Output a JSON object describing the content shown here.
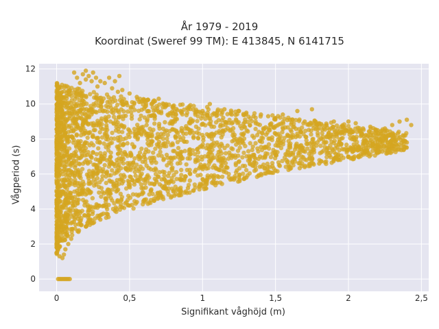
{
  "chart_data": {
    "type": "scatter",
    "title_lines": [
      "År 1979 - 2019",
      "Koordinat (Sweref 99 TM): E 413845, N 6141715"
    ],
    "xlabel": "Signifikant våghöjd (m)",
    "ylabel": "Vågperiod (s)",
    "xlim": [
      -0.12,
      2.55
    ],
    "ylim": [
      -0.7,
      12.3
    ],
    "x_ticks": [
      0,
      0.5,
      1,
      1.5,
      2,
      2.5
    ],
    "x_tick_labels": [
      "0",
      "0,5",
      "1",
      "1,5",
      "2",
      "2,5"
    ],
    "y_ticks": [
      0,
      2,
      4,
      6,
      8,
      10,
      12
    ],
    "y_tick_labels": [
      "0",
      "2",
      "4",
      "6",
      "8",
      "10",
      "12"
    ],
    "grid": true,
    "series": [
      {
        "color": "#d4a520",
        "points": [
          [
            0.01,
            0
          ],
          [
            0.02,
            0
          ],
          [
            0.03,
            0
          ],
          [
            0.04,
            0
          ],
          [
            0.05,
            0
          ],
          [
            0.06,
            0
          ],
          [
            0.07,
            0
          ],
          [
            0.08,
            0
          ],
          [
            0.09,
            0
          ],
          [
            0.12,
            11.8
          ],
          [
            0.14,
            11.5
          ],
          [
            0.16,
            11.2
          ],
          [
            0.18,
            11.7
          ],
          [
            0.2,
            11.4
          ],
          [
            0.2,
            11.9
          ],
          [
            0.22,
            11.6
          ],
          [
            0.24,
            11.3
          ],
          [
            0.25,
            11.8
          ],
          [
            0.27,
            11.5
          ],
          [
            0.28,
            11.0
          ],
          [
            0.3,
            11.3
          ],
          [
            0.33,
            11.2
          ],
          [
            0.36,
            11.5
          ],
          [
            0.38,
            10.9
          ],
          [
            0.4,
            11.3
          ],
          [
            0.42,
            10.7
          ],
          [
            0.43,
            11.6
          ],
          [
            0.45,
            10.8
          ],
          [
            0.5,
            10.6
          ],
          [
            0.55,
            10.4
          ],
          [
            0.6,
            10.2
          ],
          [
            0.65,
            10.0
          ],
          [
            0.7,
            10.3
          ],
          [
            0.75,
            9.9
          ],
          [
            0.8,
            9.8
          ],
          [
            0.85,
            9.6
          ],
          [
            0.9,
            9.7
          ],
          [
            0.95,
            9.5
          ],
          [
            1.0,
            9.6
          ],
          [
            1.05,
            10.0
          ],
          [
            1.1,
            9.5
          ],
          [
            1.15,
            9.7
          ],
          [
            1.2,
            9.4
          ],
          [
            1.25,
            9.6
          ],
          [
            1.3,
            9.5
          ],
          [
            1.35,
            9.3
          ],
          [
            1.4,
            9.4
          ],
          [
            1.45,
            9.3
          ],
          [
            1.5,
            9.2
          ],
          [
            1.55,
            9.4
          ],
          [
            1.6,
            9.1
          ],
          [
            1.65,
            9.6
          ],
          [
            1.7,
            9.0
          ],
          [
            1.75,
            9.7
          ],
          [
            1.8,
            8.9
          ],
          [
            1.85,
            8.8
          ],
          [
            1.9,
            9.0
          ],
          [
            1.95,
            8.7
          ],
          [
            2.0,
            9.0
          ],
          [
            2.05,
            8.9
          ],
          [
            2.1,
            8.6
          ],
          [
            2.15,
            8.7
          ],
          [
            2.2,
            8.5
          ],
          [
            2.25,
            8.6
          ],
          [
            2.3,
            8.8
          ],
          [
            2.35,
            9.0
          ],
          [
            2.4,
            9.1
          ],
          [
            2.43,
            8.8
          ],
          [
            0.0,
            1.5
          ],
          [
            0.01,
            1.9
          ],
          [
            0.02,
            1.3
          ],
          [
            0.03,
            2.2
          ],
          [
            0.04,
            1.2
          ],
          [
            0.05,
            1.4
          ],
          [
            0.06,
            1.7
          ],
          [
            0.08,
            2.0
          ],
          [
            0.1,
            2.3
          ],
          [
            0.15,
            2.7
          ],
          [
            0.2,
            3.0
          ],
          [
            0.25,
            3.2
          ],
          [
            0.3,
            3.4
          ],
          [
            0.35,
            3.7
          ],
          [
            0.4,
            3.9
          ],
          [
            0.45,
            4.1
          ],
          [
            0.5,
            4.2
          ],
          [
            0.55,
            4.4
          ],
          [
            0.6,
            4.5
          ],
          [
            0.7,
            4.8
          ],
          [
            0.8,
            5.0
          ],
          [
            0.9,
            5.2
          ],
          [
            1.0,
            5.3
          ],
          [
            1.1,
            5.5
          ],
          [
            1.2,
            5.7
          ],
          [
            1.3,
            5.8
          ],
          [
            1.4,
            6.0
          ],
          [
            1.5,
            6.2
          ],
          [
            1.6,
            6.3
          ],
          [
            1.7,
            6.4
          ],
          [
            1.8,
            6.6
          ],
          [
            1.9,
            6.8
          ],
          [
            2.0,
            7.0
          ],
          [
            2.1,
            7.2
          ],
          [
            2.2,
            7.4
          ],
          [
            2.3,
            7.6
          ],
          [
            2.4,
            7.8
          ]
        ]
      }
    ]
  }
}
